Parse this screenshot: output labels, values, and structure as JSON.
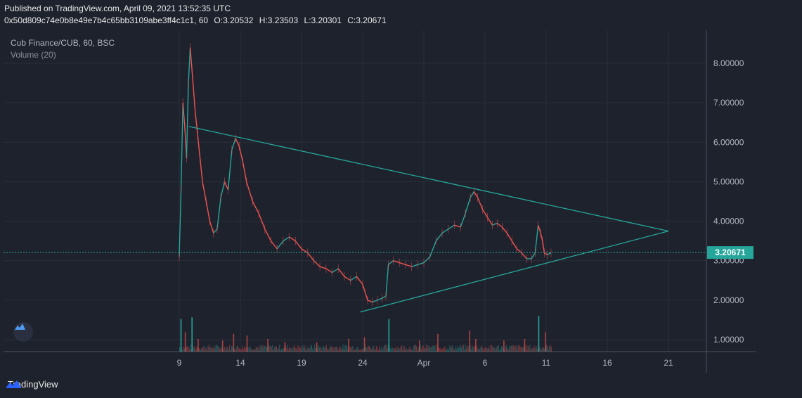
{
  "header": {
    "published": "Published on TradingView.com, April 09, 2021 13:52:35 UTC",
    "symbol": "0x50d809c74e0b8e49e7b4c65bb3109abe3ff4c1c1, 60",
    "open": "O:3.20532",
    "high": "H:3.23503",
    "low": "L:3.20301",
    "close": "C:3.20671"
  },
  "legend": {
    "series": "Cub Finance/CUB, 60, BSC",
    "volume": "Volume (20)"
  },
  "footer": {
    "brand": "TradingView"
  },
  "colors": {
    "background": "#1e222d",
    "grid": "#2a2e39",
    "up": "#26a69a",
    "down": "#ef5350",
    "trendline": "#26a69a",
    "price_label_bg": "#26a69a"
  },
  "chart_data": {
    "type": "candlestick",
    "title": "Cub Finance/CUB, 60, BSC",
    "x_ticks": [
      "9",
      "14",
      "19",
      "24",
      "Apr",
      "6",
      "11",
      "16",
      "21"
    ],
    "y_ticks": [
      "1.00000",
      "2.00000",
      "3.00000",
      "4.00000",
      "5.00000",
      "6.00000",
      "7.00000",
      "8.00000"
    ],
    "ylim": [
      0.7,
      8.5
    ],
    "last_price": 3.20671,
    "last_price_label": "3.20671",
    "volume_indicator": "Volume (20)",
    "price_path": [
      {
        "x": 9.0,
        "y": 3.1
      },
      {
        "x": 9.15,
        "y": 4.8
      },
      {
        "x": 9.3,
        "y": 7.0
      },
      {
        "x": 9.45,
        "y": 6.4
      },
      {
        "x": 9.6,
        "y": 5.6
      },
      {
        "x": 9.75,
        "y": 7.5
      },
      {
        "x": 9.9,
        "y": 8.4
      },
      {
        "x": 10.1,
        "y": 7.6
      },
      {
        "x": 10.3,
        "y": 6.8
      },
      {
        "x": 10.5,
        "y": 6.2
      },
      {
        "x": 10.7,
        "y": 5.6
      },
      {
        "x": 10.9,
        "y": 5.0
      },
      {
        "x": 11.2,
        "y": 4.5
      },
      {
        "x": 11.5,
        "y": 4.0
      },
      {
        "x": 11.8,
        "y": 3.7
      },
      {
        "x": 12.1,
        "y": 3.8
      },
      {
        "x": 12.4,
        "y": 4.6
      },
      {
        "x": 12.7,
        "y": 5.0
      },
      {
        "x": 13.0,
        "y": 4.8
      },
      {
        "x": 13.3,
        "y": 5.8
      },
      {
        "x": 13.6,
        "y": 6.1
      },
      {
        "x": 13.9,
        "y": 5.9
      },
      {
        "x": 14.2,
        "y": 5.5
      },
      {
        "x": 14.5,
        "y": 5.0
      },
      {
        "x": 15.0,
        "y": 4.5
      },
      {
        "x": 15.5,
        "y": 4.2
      },
      {
        "x": 16.0,
        "y": 3.8
      },
      {
        "x": 16.5,
        "y": 3.5
      },
      {
        "x": 17.0,
        "y": 3.3
      },
      {
        "x": 17.5,
        "y": 3.5
      },
      {
        "x": 18.0,
        "y": 3.6
      },
      {
        "x": 18.5,
        "y": 3.5
      },
      {
        "x": 19.0,
        "y": 3.3
      },
      {
        "x": 19.5,
        "y": 3.2
      },
      {
        "x": 20.0,
        "y": 3.0
      },
      {
        "x": 20.5,
        "y": 2.85
      },
      {
        "x": 21.0,
        "y": 2.8
      },
      {
        "x": 21.5,
        "y": 2.7
      },
      {
        "x": 22.0,
        "y": 2.8
      },
      {
        "x": 22.5,
        "y": 2.6
      },
      {
        "x": 23.0,
        "y": 2.5
      },
      {
        "x": 23.5,
        "y": 2.6
      },
      {
        "x": 24.0,
        "y": 2.4
      },
      {
        "x": 24.4,
        "y": 2.0
      },
      {
        "x": 24.8,
        "y": 1.95
      },
      {
        "x": 25.2,
        "y": 2.0
      },
      {
        "x": 25.6,
        "y": 2.05
      },
      {
        "x": 25.9,
        "y": 2.1
      },
      {
        "x": 26.1,
        "y": 2.9
      },
      {
        "x": 26.5,
        "y": 3.0
      },
      {
        "x": 27.0,
        "y": 2.95
      },
      {
        "x": 27.5,
        "y": 2.9
      },
      {
        "x": 28.0,
        "y": 2.85
      },
      {
        "x": 28.5,
        "y": 2.9
      },
      {
        "x": 29.0,
        "y": 2.95
      },
      {
        "x": 29.5,
        "y": 3.1
      },
      {
        "x": 30.0,
        "y": 3.5
      },
      {
        "x": 30.5,
        "y": 3.7
      },
      {
        "x": 31.0,
        "y": 3.8
      },
      {
        "x": 31.5,
        "y": 3.9
      },
      {
        "x": 32.0,
        "y": 3.85
      },
      {
        "x": 32.4,
        "y": 4.2
      },
      {
        "x": 32.8,
        "y": 4.6
      },
      {
        "x": 33.1,
        "y": 4.75
      },
      {
        "x": 33.4,
        "y": 4.6
      },
      {
        "x": 33.8,
        "y": 4.3
      },
      {
        "x": 34.2,
        "y": 4.1
      },
      {
        "x": 34.6,
        "y": 3.9
      },
      {
        "x": 35.0,
        "y": 3.95
      },
      {
        "x": 35.4,
        "y": 3.85
      },
      {
        "x": 35.8,
        "y": 3.7
      },
      {
        "x": 36.2,
        "y": 3.5
      },
      {
        "x": 36.6,
        "y": 3.3
      },
      {
        "x": 37.0,
        "y": 3.2
      },
      {
        "x": 37.4,
        "y": 3.05
      },
      {
        "x": 37.8,
        "y": 3.05
      },
      {
        "x": 38.1,
        "y": 3.2
      },
      {
        "x": 38.35,
        "y": 3.9
      },
      {
        "x": 38.55,
        "y": 3.7
      },
      {
        "x": 38.7,
        "y": 3.5
      },
      {
        "x": 38.85,
        "y": 3.2
      },
      {
        "x": 39.1,
        "y": 3.15
      },
      {
        "x": 39.4,
        "y": 3.2
      }
    ],
    "trendlines": [
      {
        "name": "resistance",
        "from": {
          "x": 9.8,
          "y": 6.4
        },
        "to": {
          "x": 49.0,
          "y": 3.75
        }
      },
      {
        "name": "support",
        "from": {
          "x": 23.8,
          "y": 1.7
        },
        "to": {
          "x": 49.0,
          "y": 3.75
        }
      }
    ],
    "volume_spikes": [
      {
        "x": 9.1,
        "v": 0.9
      },
      {
        "x": 9.45,
        "v": 0.5
      },
      {
        "x": 10.0,
        "v": 0.95
      },
      {
        "x": 10.5,
        "v": 0.3
      },
      {
        "x": 12.5,
        "v": 0.25
      },
      {
        "x": 13.4,
        "v": 0.45
      },
      {
        "x": 14.5,
        "v": 0.4
      },
      {
        "x": 16.2,
        "v": 0.3
      },
      {
        "x": 17.6,
        "v": 0.2
      },
      {
        "x": 20.2,
        "v": 0.2
      },
      {
        "x": 22.8,
        "v": 0.3
      },
      {
        "x": 24.1,
        "v": 0.35
      },
      {
        "x": 26.1,
        "v": 0.9
      },
      {
        "x": 28.6,
        "v": 0.25
      },
      {
        "x": 30.1,
        "v": 0.45
      },
      {
        "x": 32.7,
        "v": 0.55
      },
      {
        "x": 33.2,
        "v": 0.3
      },
      {
        "x": 35.5,
        "v": 0.25
      },
      {
        "x": 37.2,
        "v": 0.3
      },
      {
        "x": 38.35,
        "v": 1.0
      },
      {
        "x": 38.9,
        "v": 0.5
      }
    ]
  }
}
